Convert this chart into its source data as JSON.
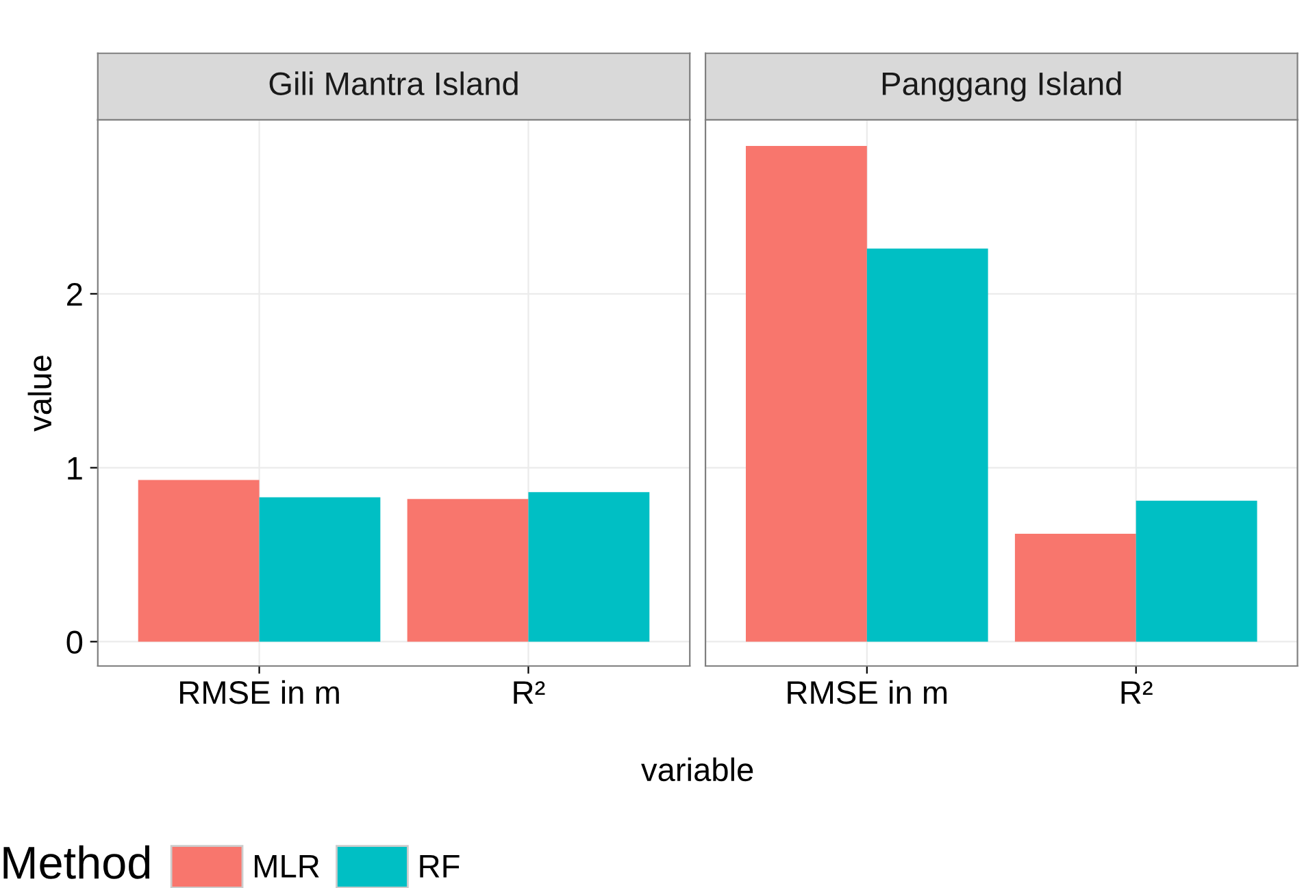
{
  "chart_data": [
    {
      "type": "bar",
      "title": "Gili Mantra Island",
      "xlabel": "variable",
      "ylabel": "value",
      "categories": [
        "RMSE in m",
        "R²"
      ],
      "series": [
        {
          "name": "MLR",
          "color": "#f8766d",
          "values": [
            0.93,
            0.82
          ]
        },
        {
          "name": "RF",
          "color": "#00bfc4",
          "values": [
            0.83,
            0.86
          ]
        }
      ],
      "ylim": [
        -0.14,
        3.0
      ],
      "yticks": [
        0,
        1,
        2
      ],
      "grid": true,
      "legend": "bottom",
      "legend_title": "Method"
    },
    {
      "type": "bar",
      "title": "Panggang Island",
      "categories": [
        "RMSE in m",
        "R²"
      ],
      "series": [
        {
          "name": "MLR",
          "color": "#f8766d",
          "values": [
            2.85,
            0.62
          ]
        },
        {
          "name": "RF",
          "color": "#00bfc4",
          "values": [
            2.26,
            0.81
          ]
        }
      ],
      "ylim": [
        -0.14,
        3.0
      ],
      "yticks": [
        0,
        1,
        2
      ],
      "grid": true,
      "tick_labels": "x"
    }
  ]
}
